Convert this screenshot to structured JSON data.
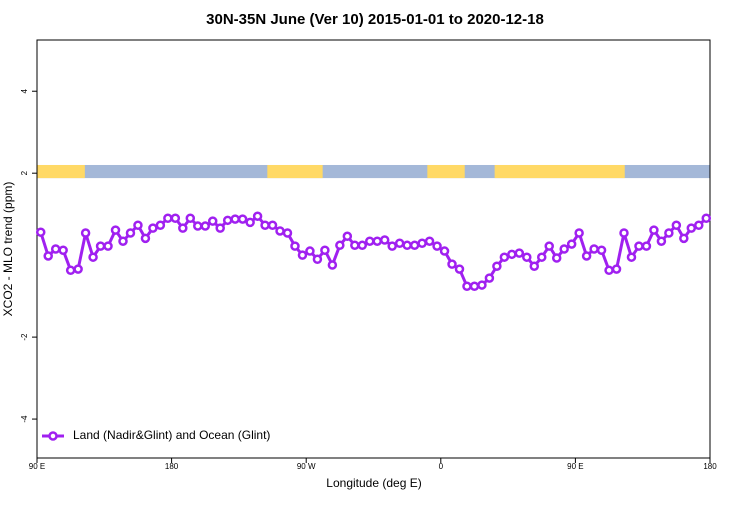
{
  "chart_data": {
    "type": "line",
    "title": "30N-35N June (Ver 10)   2015-01-01 to 2020-12-18",
    "x_label": "Longitude (deg E)",
    "y_label": "XCO2 - MLO trend (ppm)",
    "xlim": [
      90,
      540
    ],
    "xticks": [
      {
        "value": 90,
        "label": "90 E"
      },
      180,
      {
        "value": 270,
        "label": "90 W"
      },
      {
        "value": 360,
        "label": "0"
      },
      {
        "value": 450,
        "label": "90 E"
      },
      {
        "value": 540,
        "label": "180"
      }
    ],
    "ylim": [
      -4.95,
      5.25
    ],
    "yticks": [
      -4,
      -2,
      2,
      4
    ],
    "legend": "bottom-left",
    "band": {
      "ylim": [
        1.88,
        2.2
      ],
      "land_color": "#ffd966",
      "ocean_color": "#a4b8d8",
      "land_ranges": [
        [
          90,
          122
        ],
        [
          244,
          281
        ],
        [
          351,
          376
        ],
        [
          396,
          483
        ]
      ]
    },
    "x": [
      92.5,
      97.5,
      102.5,
      107.5,
      112.5,
      117.5,
      122.5,
      127.5,
      132.5,
      137.5,
      142.5,
      147.5,
      152.5,
      157.5,
      162.5,
      167.5,
      172.5,
      177.5,
      182.5,
      187.5,
      192.5,
      197.5,
      202.5,
      207.5,
      212.5,
      217.5,
      222.5,
      227.5,
      232.5,
      237.5,
      242.5,
      247.5,
      252.5,
      257.5,
      262.5,
      267.5,
      272.5,
      277.5,
      282.5,
      287.5,
      292.5,
      297.5,
      302.5,
      307.5,
      312.5,
      317.5,
      322.5,
      327.5,
      332.5,
      337.5,
      342.5,
      347.5,
      352.5,
      357.5,
      362.5,
      367.5,
      372.5,
      377.5,
      382.5,
      387.5,
      392.5,
      397.5,
      402.5,
      407.5,
      412.5,
      417.5,
      422.5,
      427.5,
      432.5,
      437.5,
      442.5,
      447.5,
      452.5,
      457.5,
      462.5,
      467.5,
      472.5,
      477.5,
      482.5,
      487.5,
      492.5,
      497.5,
      502.5,
      507.5,
      512.5,
      517.5,
      522.5,
      527.5,
      532.5,
      537.5
    ],
    "series": [
      {
        "name": "Land (Nadir&Glint) and Ocean (Glint)",
        "color": "#a020f0",
        "values": [
          0.56,
          -0.02,
          0.15,
          0.12,
          -0.37,
          -0.34,
          0.54,
          -0.05,
          0.22,
          0.22,
          0.61,
          0.34,
          0.54,
          0.73,
          0.41,
          0.66,
          0.73,
          0.9,
          0.9,
          0.66,
          0.9,
          0.71,
          0.71,
          0.83,
          0.66,
          0.85,
          0.88,
          0.88,
          0.8,
          0.95,
          0.73,
          0.73,
          0.59,
          0.54,
          0.22,
          0,
          0.1,
          -0.1,
          0.12,
          -0.24,
          0.24,
          0.46,
          0.24,
          0.24,
          0.34,
          0.34,
          0.37,
          0.22,
          0.29,
          0.24,
          0.24,
          0.29,
          0.34,
          0.22,
          0.1,
          -0.22,
          -0.34,
          -0.76,
          -0.76,
          -0.73,
          -0.56,
          -0.27,
          -0.05,
          0.02,
          0.05,
          -0.05,
          -0.27,
          -0.05,
          0.22,
          -0.07,
          0.15,
          0.27,
          0.54,
          -0.02,
          0.15,
          0.12,
          -0.37,
          -0.34,
          0.54,
          -0.05,
          0.22,
          0.22,
          0.61,
          0.34,
          0.54,
          0.73,
          0.41,
          0.66,
          0.73,
          0.9
        ]
      }
    ]
  }
}
